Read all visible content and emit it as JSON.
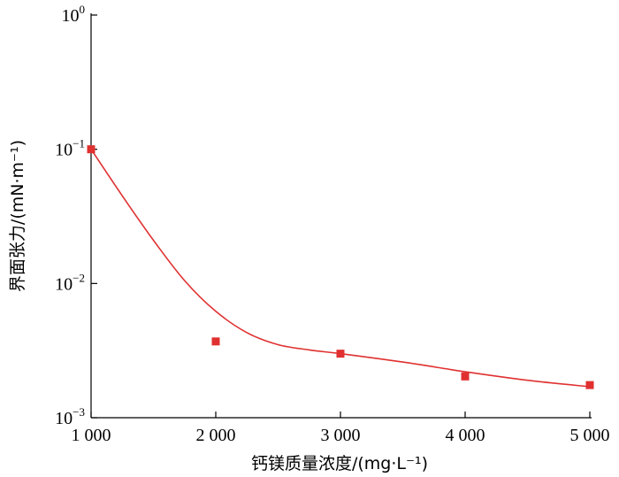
{
  "chart_data": {
    "type": "scatter",
    "xlabel": "钙镁质量浓度/(mg·L⁻¹)",
    "ylabel": "界面张力/(mN·m⁻¹)",
    "x_scale": "linear",
    "y_scale": "log",
    "xlim": [
      1000,
      5000
    ],
    "ylim": [
      0.001,
      1
    ],
    "x_ticks": [
      {
        "value": 1000,
        "label": "1 000"
      },
      {
        "value": 2000,
        "label": "2 000"
      },
      {
        "value": 3000,
        "label": "3 000"
      },
      {
        "value": 4000,
        "label": "4 000"
      },
      {
        "value": 5000,
        "label": "5 000"
      }
    ],
    "y_ticks": [
      {
        "value": 1,
        "base": "10",
        "exp": "0"
      },
      {
        "value": 0.1,
        "base": "10",
        "exp": "−1"
      },
      {
        "value": 0.01,
        "base": "10",
        "exp": "−2"
      },
      {
        "value": 0.001,
        "base": "10",
        "exp": "−3"
      }
    ],
    "grid": false,
    "legend": "none",
    "series": [
      {
        "kind": "markers",
        "marker": "square",
        "color": "#e03030",
        "x": [
          1000,
          2000,
          3000,
          4000,
          5000
        ],
        "y": [
          0.1,
          0.0037,
          0.003,
          0.00203,
          0.00175
        ]
      },
      {
        "kind": "fit-line",
        "color": "#e03030",
        "x": [
          1000,
          1250,
          1500,
          1750,
          2000,
          2250,
          2500,
          2750,
          3000,
          3500,
          4000,
          4500,
          5000
        ],
        "y": [
          0.1,
          0.045,
          0.021,
          0.0105,
          0.0062,
          0.0043,
          0.0035,
          0.0032,
          0.003,
          0.0026,
          0.0022,
          0.0019,
          0.0017
        ]
      }
    ]
  }
}
